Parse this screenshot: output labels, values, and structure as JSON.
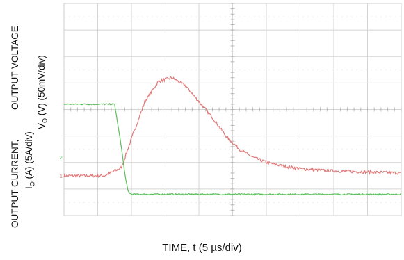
{
  "chart_data": {
    "type": "line",
    "title": "",
    "xlabel": "TIME, t (5 µs/div)",
    "ylabel_voltage_line1": "OUTPUT VOLTAGE",
    "ylabel_voltage_line2": {
      "prefix": "V",
      "sub": "O",
      "suffix": " (V) (50mV/div)"
    },
    "ylabel_current_line1": "OUTPUT CURRENT,",
    "ylabel_current_line2": {
      "prefix": "I",
      "sub": "O",
      "suffix": " (A) (5A/div)"
    },
    "grid": true,
    "x_unit": "µs",
    "x_per_div": 5,
    "x_divisions": 10,
    "xlim": [
      0,
      50
    ],
    "y_divisions": 8,
    "series": [
      {
        "key": "vout",
        "color": "#e07878",
        "unit": "mV",
        "per_div": 50,
        "ylim": [
          -75,
          325
        ],
        "x": [
          0,
          6,
          8.5,
          10,
          12,
          14,
          16,
          18,
          20,
          22,
          24,
          26,
          28,
          30,
          33,
          36,
          40,
          45,
          50
        ],
        "values": [
          0,
          0,
          15,
          70,
          140,
          178,
          185,
          170,
          140,
          110,
          75,
          50,
          35,
          25,
          17,
          12,
          9,
          7,
          5
        ]
      },
      {
        "key": "iout",
        "color": "#5cc05c",
        "unit": "A",
        "per_div": 5,
        "ylim": [
          -11,
          29
        ],
        "x": [
          0,
          7.5,
          8,
          8.5,
          9,
          9.5,
          10,
          11,
          20,
          30,
          40,
          50
        ],
        "values": [
          10,
          10,
          6,
          2,
          -3,
          -6.5,
          -7,
          -7,
          -7,
          -7,
          -7,
          -7
        ]
      }
    ],
    "ground_markers": [
      {
        "series": "vout",
        "label": "1"
      },
      {
        "series": "iout",
        "label": "2"
      }
    ]
  }
}
